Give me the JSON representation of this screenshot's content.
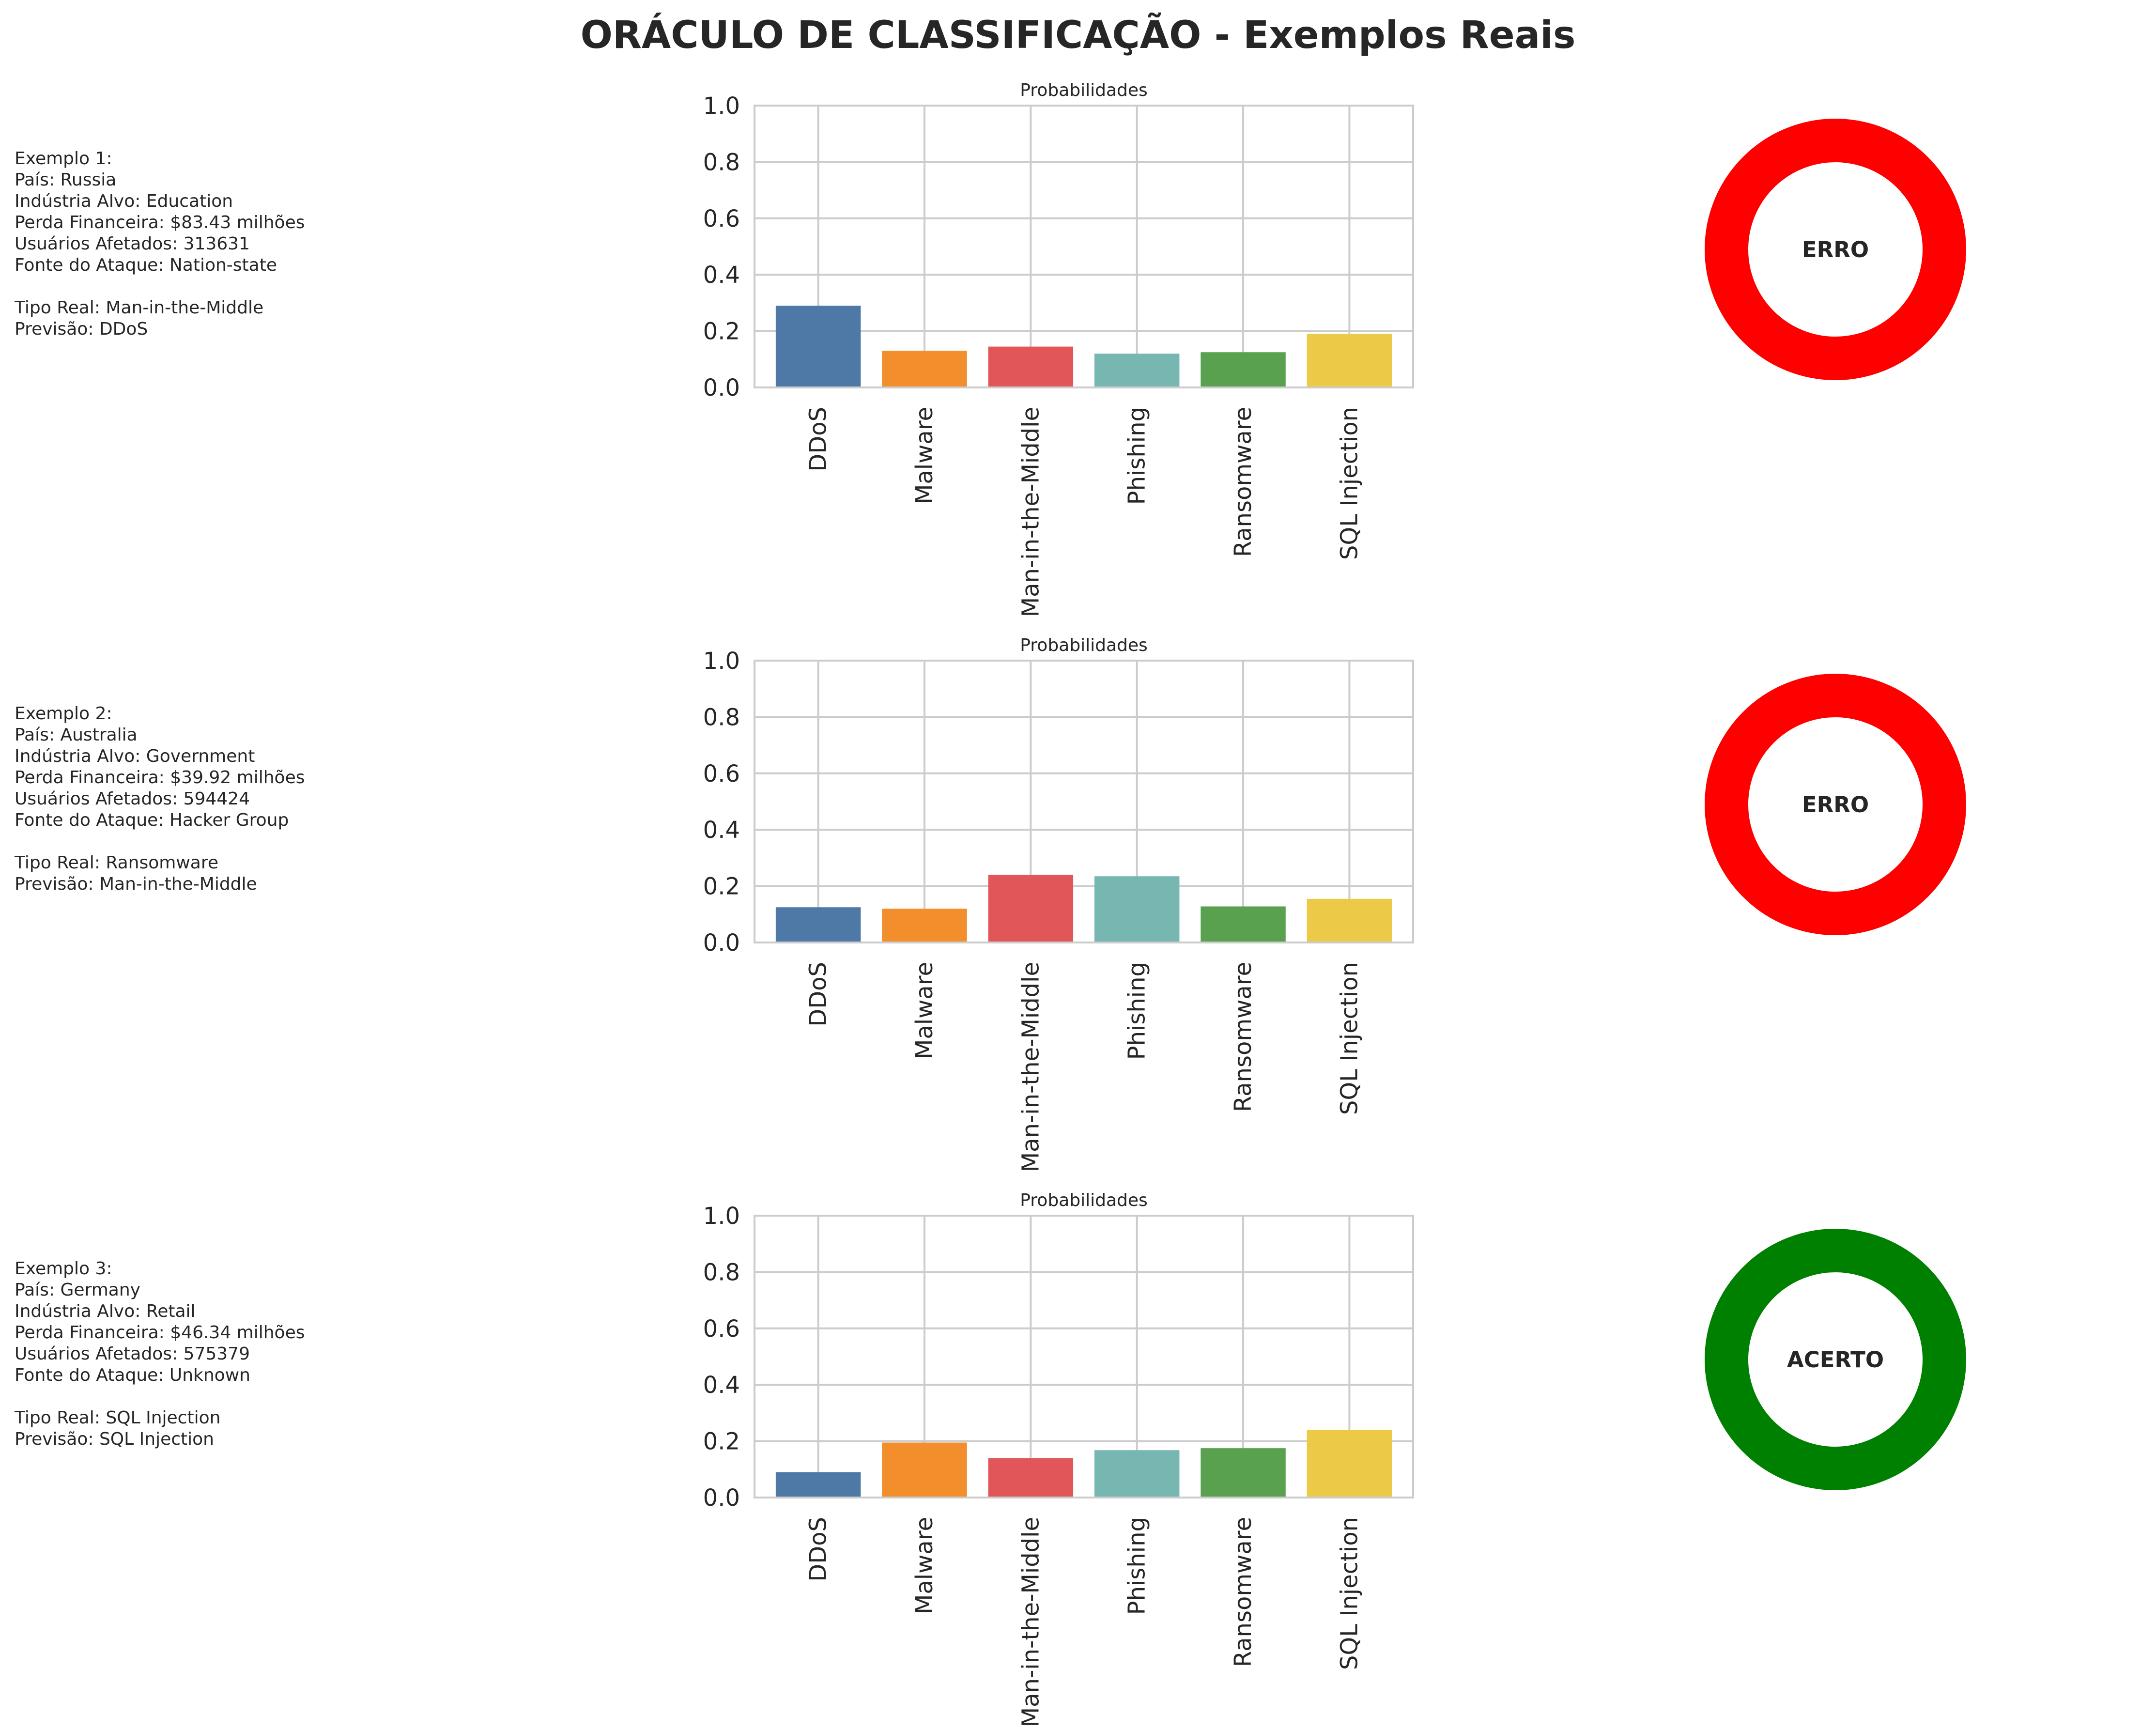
{
  "title": "ORÁCULO DE CLASSIFICAÇÃO - Exemplos Reais",
  "colors": {
    "bars": [
      "#4e79a7",
      "#f28e2b",
      "#e15759",
      "#76b7b2",
      "#59a14f",
      "#edc948"
    ],
    "erro": "#ff0000",
    "acerto": "#008000",
    "grid": "#cccccc",
    "text": "#262626"
  },
  "examples": [
    {
      "info": {
        "heading": "Exemplo 1:",
        "pais": "País: Russia",
        "industria": "Indústria Alvo: Education",
        "perda": "Perda Financeira: $83.43 milhões",
        "usuarios": "Usuários Afetados: 313631",
        "fonte": "Fonte do Ataque: Nation-state",
        "real": "Tipo Real: Man-in-the-Middle",
        "previsao": "Previsão: DDoS"
      },
      "result": "ERRO"
    },
    {
      "info": {
        "heading": "Exemplo 2:",
        "pais": "País: Australia",
        "industria": "Indústria Alvo: Government",
        "perda": "Perda Financeira: $39.92 milhões",
        "usuarios": "Usuários Afetados: 594424",
        "fonte": "Fonte do Ataque: Hacker Group",
        "real": "Tipo Real: Ransomware",
        "previsao": "Previsão: Man-in-the-Middle"
      },
      "result": "ERRO"
    },
    {
      "info": {
        "heading": "Exemplo 3:",
        "pais": "País: Germany",
        "industria": "Indústria Alvo: Retail",
        "perda": "Perda Financeira: $46.34 milhões",
        "usuarios": "Usuários Afetados: 575379",
        "fonte": "Fonte do Ataque: Unknown",
        "real": "Tipo Real: SQL Injection",
        "previsao": "Previsão: SQL Injection"
      },
      "result": "ACERTO"
    }
  ],
  "chart_data": [
    {
      "type": "bar",
      "title": "Probabilidades",
      "categories": [
        "DDoS",
        "Malware",
        "Man-in-the-Middle",
        "Phishing",
        "Ransomware",
        "SQL Injection"
      ],
      "values": [
        0.29,
        0.13,
        0.145,
        0.12,
        0.125,
        0.19
      ],
      "yticks": [
        "0.0",
        "0.2",
        "0.4",
        "0.6",
        "0.8",
        "1.0"
      ],
      "ylim": [
        0,
        1
      ],
      "grid": true
    },
    {
      "type": "bar",
      "title": "Probabilidades",
      "categories": [
        "DDoS",
        "Malware",
        "Man-in-the-Middle",
        "Phishing",
        "Ransomware",
        "SQL Injection"
      ],
      "values": [
        0.125,
        0.12,
        0.24,
        0.235,
        0.128,
        0.155
      ],
      "yticks": [
        "0.0",
        "0.2",
        "0.4",
        "0.6",
        "0.8",
        "1.0"
      ],
      "ylim": [
        0,
        1
      ],
      "grid": true
    },
    {
      "type": "bar",
      "title": "Probabilidades",
      "categories": [
        "DDoS",
        "Malware",
        "Man-in-the-Middle",
        "Phishing",
        "Ransomware",
        "SQL Injection"
      ],
      "values": [
        0.09,
        0.195,
        0.14,
        0.168,
        0.175,
        0.24
      ],
      "yticks": [
        "0.0",
        "0.2",
        "0.4",
        "0.6",
        "0.8",
        "1.0"
      ],
      "ylim": [
        0,
        1
      ],
      "grid": true
    }
  ]
}
